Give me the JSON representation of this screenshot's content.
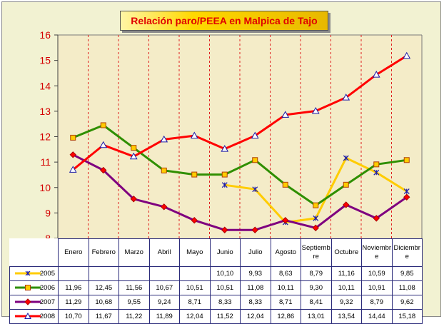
{
  "chart_data": {
    "type": "line",
    "title": "Relación paro/PEEA en Malpica de Tajo",
    "xlabel": "",
    "ylabel": "",
    "ylim": [
      8,
      16
    ],
    "yticks": [
      "8",
      "9",
      "10",
      "11",
      "12",
      "13",
      "14",
      "15",
      "16"
    ],
    "categories": [
      "Enero",
      "Febrero",
      "Marzo",
      "Abril",
      "Mayo",
      "Junio",
      "Julio",
      "Agosto",
      "Septiembre",
      "Octubre",
      "Noviembre",
      "Diciembre"
    ],
    "grid": "vertical dashed",
    "legend": "left of data table",
    "series": [
      {
        "name": "2005",
        "color": "#ffcc00",
        "marker": "asterisk",
        "values": [
          null,
          null,
          null,
          null,
          null,
          10.1,
          9.93,
          8.63,
          8.79,
          11.16,
          10.59,
          9.85
        ],
        "labels": [
          "",
          "",
          "",
          "",
          "",
          "10,10",
          "9,93",
          "8,63",
          "8,79",
          "11,16",
          "10,59",
          "9,85"
        ]
      },
      {
        "name": "2006",
        "color": "#2f8f00",
        "marker": "square",
        "values": [
          11.96,
          12.45,
          11.56,
          10.67,
          10.51,
          10.51,
          11.08,
          10.11,
          9.3,
          10.11,
          10.91,
          11.08
        ],
        "labels": [
          "11,96",
          "12,45",
          "11,56",
          "10,67",
          "10,51",
          "10,51",
          "11,08",
          "10,11",
          "9,30",
          "10,11",
          "10,91",
          "11,08"
        ]
      },
      {
        "name": "2007",
        "color": "#7f007f",
        "marker": "diamond",
        "values": [
          11.29,
          10.68,
          9.55,
          9.24,
          8.71,
          8.33,
          8.33,
          8.71,
          8.41,
          9.32,
          8.79,
          9.62
        ],
        "labels": [
          "11,29",
          "10,68",
          "9,55",
          "9,24",
          "8,71",
          "8,33",
          "8,33",
          "8,71",
          "8,41",
          "9,32",
          "8,79",
          "9,62"
        ]
      },
      {
        "name": "2008",
        "color": "#ff0000",
        "marker": "triangle",
        "values": [
          10.7,
          11.67,
          11.22,
          11.89,
          12.04,
          11.52,
          12.04,
          12.86,
          13.01,
          13.54,
          14.44,
          15.18
        ],
        "labels": [
          "10,70",
          "11,67",
          "11,22",
          "11,89",
          "12,04",
          "11,52",
          "12,04",
          "12,86",
          "13,01",
          "13,54",
          "14,44",
          "15,18"
        ]
      }
    ]
  }
}
